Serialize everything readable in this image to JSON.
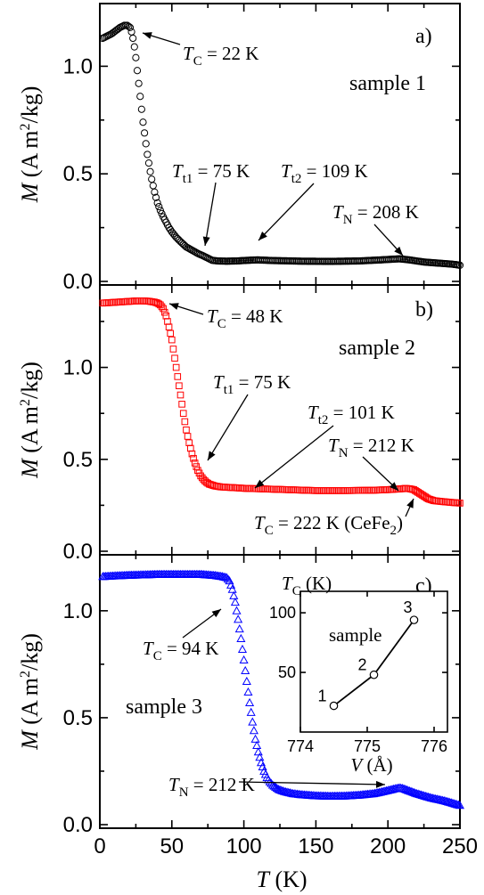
{
  "chart_data": [
    {
      "panel": "a)",
      "type": "scatter",
      "sample_label": "sample 1",
      "marker": "circle",
      "color": "#000000",
      "ylim": [
        0.0,
        1.25
      ],
      "xlim": [
        0,
        250
      ],
      "yticks": [
        0.0,
        0.5,
        1.0
      ],
      "ylabel": {
        "sym": "M",
        "text": " (A m",
        "sup": "2",
        "text2": "/kg)"
      },
      "x": [
        2,
        5,
        8,
        11,
        14,
        17,
        19,
        21,
        22,
        23,
        24,
        25,
        26,
        27,
        28,
        29,
        30,
        31,
        32,
        33,
        34,
        35,
        36,
        37,
        38,
        39,
        40,
        42,
        44,
        46,
        48,
        50,
        53,
        56,
        60,
        64,
        68,
        72,
        75,
        78,
        82,
        88,
        95,
        100,
        109,
        120,
        140,
        160,
        180,
        195,
        208,
        215,
        225,
        235,
        245,
        250
      ],
      "y": [
        1.13,
        1.14,
        1.15,
        1.165,
        1.18,
        1.19,
        1.19,
        1.18,
        1.16,
        1.13,
        1.09,
        1.04,
        0.98,
        0.92,
        0.86,
        0.8,
        0.74,
        0.69,
        0.64,
        0.59,
        0.55,
        0.51,
        0.475,
        0.445,
        0.415,
        0.39,
        0.365,
        0.33,
        0.3,
        0.275,
        0.25,
        0.23,
        0.205,
        0.185,
        0.16,
        0.145,
        0.13,
        0.118,
        0.108,
        0.098,
        0.095,
        0.094,
        0.095,
        0.097,
        0.1,
        0.097,
        0.094,
        0.093,
        0.095,
        0.1,
        0.105,
        0.1,
        0.09,
        0.085,
        0.08,
        0.075
      ],
      "annotations": [
        {
          "sym": "T",
          "sub": "C",
          "text": " = 22 K"
        },
        {
          "sym": "T",
          "sub": "t1",
          "text": " = 75 K"
        },
        {
          "sym": "T",
          "sub": "t2",
          "text": " = 109 K"
        },
        {
          "sym": "T",
          "sub": "N",
          "text": " = 208 K"
        }
      ]
    },
    {
      "panel": "b)",
      "type": "scatter",
      "sample_label": "sample 2",
      "marker": "square",
      "color": "#ff0000",
      "ylim": [
        0.0,
        1.4
      ],
      "xlim": [
        0,
        250
      ],
      "yticks": [
        0.0,
        0.5,
        1.0
      ],
      "ylabel": {
        "sym": "M",
        "text": " (A m",
        "sup": "2",
        "text2": "/kg)"
      },
      "x": [
        2,
        6,
        10,
        14,
        18,
        22,
        26,
        30,
        34,
        38,
        40,
        42,
        44,
        46,
        48,
        50,
        52,
        54,
        56,
        58,
        60,
        62,
        64,
        66,
        68,
        70,
        72,
        74,
        76,
        78,
        80,
        84,
        88,
        95,
        101,
        110,
        130,
        150,
        170,
        190,
        200,
        210,
        212,
        215,
        218,
        220,
        222,
        225,
        228,
        232,
        238,
        245,
        250
      ],
      "y": [
        1.35,
        1.352,
        1.354,
        1.356,
        1.358,
        1.36,
        1.362,
        1.362,
        1.36,
        1.355,
        1.35,
        1.34,
        1.32,
        1.28,
        1.22,
        1.15,
        1.05,
        0.95,
        0.85,
        0.75,
        0.66,
        0.59,
        0.53,
        0.48,
        0.44,
        0.41,
        0.39,
        0.375,
        0.365,
        0.36,
        0.355,
        0.35,
        0.348,
        0.345,
        0.342,
        0.34,
        0.335,
        0.33,
        0.33,
        0.332,
        0.335,
        0.34,
        0.342,
        0.34,
        0.335,
        0.325,
        0.315,
        0.3,
        0.285,
        0.275,
        0.27,
        0.265,
        0.262
      ],
      "annotations": [
        {
          "sym": "T",
          "sub": "C",
          "text": " = 48 K"
        },
        {
          "sym": "T",
          "sub": "t1",
          "text": " = 75 K"
        },
        {
          "sym": "T",
          "sub": "t2",
          "text": " = 101 K"
        },
        {
          "sym": "T",
          "sub": "N",
          "text": " = 212 K"
        },
        {
          "sym": "T",
          "sub": "C",
          "text": " = 222 K (CeFe",
          "sub2": "2",
          "text2": ")"
        }
      ]
    },
    {
      "panel": "c)",
      "type": "scatter",
      "sample_label": "sample 3",
      "marker": "triangle",
      "color": "#0000ff",
      "ylim": [
        0.0,
        1.22
      ],
      "xlim": [
        0,
        250
      ],
      "yticks": [
        0.0,
        0.5,
        1.0
      ],
      "xticks": [
        0,
        50,
        100,
        150,
        200,
        250
      ],
      "xlabel": {
        "sym": "T",
        "text": " (K)"
      },
      "ylabel": {
        "sym": "M",
        "text": " (A m",
        "sup": "2",
        "text2": "/kg)"
      },
      "x": [
        2,
        10,
        20,
        30,
        40,
        50,
        60,
        70,
        80,
        85,
        88,
        90,
        92,
        94,
        96,
        98,
        100,
        102,
        104,
        106,
        108,
        110,
        112,
        114,
        116,
        118,
        120,
        124,
        128,
        134,
        140,
        150,
        160,
        170,
        180,
        190,
        195,
        200,
        205,
        208,
        210,
        212,
        216,
        220,
        230,
        240,
        250
      ],
      "y": [
        1.16,
        1.163,
        1.166,
        1.168,
        1.17,
        1.17,
        1.17,
        1.17,
        1.165,
        1.16,
        1.155,
        1.14,
        1.1,
        1.04,
        0.96,
        0.87,
        0.77,
        0.67,
        0.57,
        0.48,
        0.4,
        0.34,
        0.29,
        0.25,
        0.22,
        0.2,
        0.185,
        0.165,
        0.155,
        0.145,
        0.14,
        0.135,
        0.133,
        0.134,
        0.138,
        0.145,
        0.152,
        0.16,
        0.168,
        0.172,
        0.17,
        0.165,
        0.155,
        0.145,
        0.125,
        0.11,
        0.09
      ],
      "annotations": [
        {
          "sym": "T",
          "sub": "C",
          "text": " = 94 K"
        },
        {
          "sym": "T",
          "sub": "N",
          "text": " = 212 K"
        }
      ]
    },
    {
      "panel": "inset",
      "type": "line",
      "legend_text": "sample",
      "x": [
        774.5,
        775.1,
        775.7
      ],
      "y": [
        22,
        48,
        94
      ],
      "point_labels": [
        "1",
        "2",
        "3"
      ],
      "xlim": [
        774,
        776.2
      ],
      "ylim": [
        0,
        118
      ],
      "xticks": [
        774,
        775,
        776
      ],
      "yticks": [
        50,
        100
      ],
      "xlabel": {
        "sym": "V",
        "text": " (Å)"
      },
      "ylabel": {
        "sym": "T",
        "sub": "C",
        "text": " (K)"
      }
    }
  ]
}
